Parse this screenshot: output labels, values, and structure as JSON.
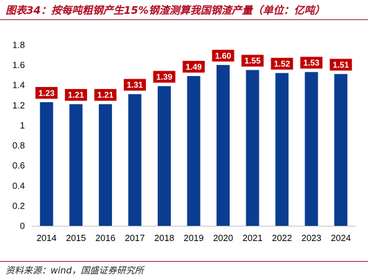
{
  "header": {
    "title": "图表34：按每吨粗钢产生15%钢渣测算我国钢渣产量（单位：亿吨）"
  },
  "footer": {
    "source": "资料来源：wind，国盛证券研究所"
  },
  "colors": {
    "accent": "#b00d23",
    "bar": "#0a3d91",
    "label_bg": "#c00000"
  },
  "chart_data": {
    "type": "bar",
    "title": "",
    "xlabel": "",
    "ylabel": "",
    "categories": [
      "2014",
      "2015",
      "2016",
      "2017",
      "2018",
      "2019",
      "2020",
      "2021",
      "2022",
      "2023",
      "2024"
    ],
    "values": [
      1.23,
      1.21,
      1.21,
      1.31,
      1.39,
      1.49,
      1.6,
      1.55,
      1.52,
      1.53,
      1.51
    ],
    "data_labels": [
      "1.23",
      "1.21",
      "1.21",
      "1.31",
      "1.39",
      "1.49",
      "1.60",
      "1.55",
      "1.52",
      "1.53",
      "1.51"
    ],
    "ylim": [
      0,
      1.8
    ],
    "yticks": [
      0,
      0.2,
      0.4,
      0.6,
      0.8,
      1,
      1.2,
      1.4,
      1.6,
      1.8
    ],
    "ytick_labels": [
      "0",
      "0.2",
      "0.4",
      "0.6",
      "0.8",
      "1",
      "1.2",
      "1.4",
      "1.6",
      "1.8"
    ],
    "grid": false,
    "legend": "none"
  }
}
